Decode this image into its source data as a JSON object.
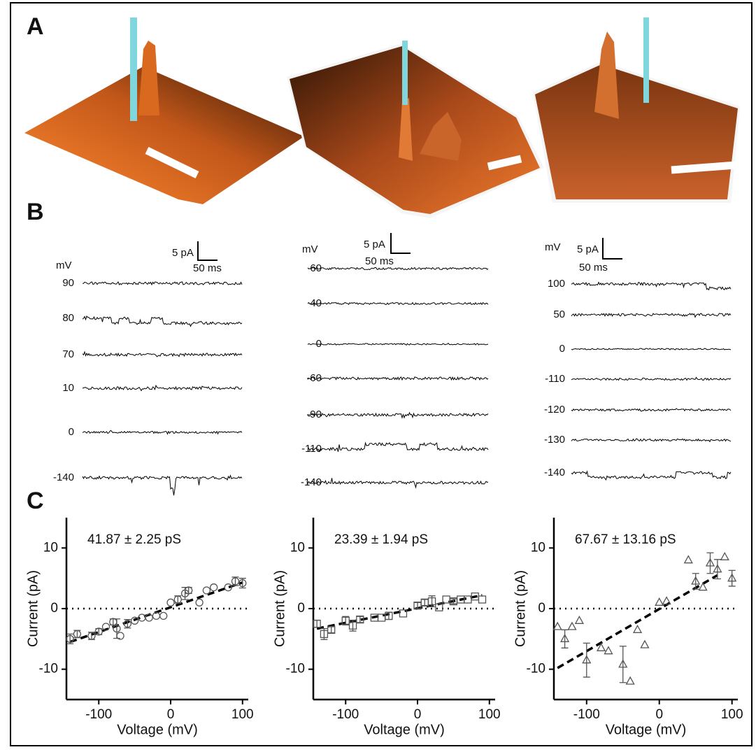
{
  "panel_labels": [
    "A",
    "B",
    "C"
  ],
  "traces": [
    {
      "unit": "mV",
      "current_scale": "5 pA",
      "time_scale": "50 ms",
      "voltages": [
        "90",
        "80",
        "70",
        "10",
        "0",
        "-140"
      ]
    },
    {
      "unit": "mV",
      "current_scale": "5 pA",
      "time_scale": "50 ms",
      "voltages": [
        "60",
        "40",
        "0",
        "-60",
        "-90",
        "-110",
        "-140"
      ]
    },
    {
      "unit": "mV",
      "current_scale": "5 pA",
      "time_scale": "50 ms",
      "voltages": [
        "100",
        "50",
        "0",
        "-110",
        "-120",
        "-130",
        "-140"
      ]
    }
  ],
  "chart_data": [
    {
      "type": "scatter",
      "marker": "circle",
      "color": "#555555",
      "annotation": "41.87 ± 2.25 pS",
      "xlabel": "Voltage (mV)",
      "ylabel": "Current (pA)",
      "x": [
        -140,
        -130,
        -110,
        -100,
        -90,
        -80,
        -75,
        -70,
        -60,
        -50,
        -40,
        -30,
        -20,
        -10,
        0,
        10,
        20,
        25,
        40,
        50,
        60,
        80,
        90,
        100
      ],
      "values": [
        -5,
        -4.2,
        -4.5,
        -3.8,
        -3,
        -2.2,
        -3.3,
        -4.5,
        -2.5,
        -2,
        -1.5,
        -1.5,
        -1.2,
        -1.2,
        1,
        1.5,
        2.5,
        3,
        1,
        3,
        3.5,
        3.5,
        4.5,
        4.2
      ],
      "errors": [
        0.8,
        0.6,
        0.6,
        0.5,
        null,
        0.5,
        1.6,
        null,
        0.7,
        null,
        null,
        null,
        null,
        null,
        null,
        0.6,
        1,
        0.5,
        null,
        null,
        null,
        null,
        0.7,
        0.8
      ],
      "fit": {
        "x": [
          -140,
          100
        ],
        "values": [
          -5.5,
          4.3
        ]
      },
      "xlim": [
        -145,
        108
      ],
      "ylim": [
        -15,
        15
      ],
      "xticks": [
        -100,
        0,
        100
      ],
      "yticks": [
        -10,
        0,
        10
      ]
    },
    {
      "type": "scatter",
      "marker": "square",
      "color": "#555555",
      "annotation": "23.39 ± 1.94 pS",
      "xlabel": "Voltage (mV)",
      "ylabel": "Current (pA)",
      "x": [
        -140,
        -130,
        -120,
        -100,
        -90,
        -80,
        -60,
        -50,
        -40,
        -20,
        0,
        10,
        20,
        30,
        40,
        50,
        60,
        70,
        80,
        90
      ],
      "values": [
        -2.5,
        -4.2,
        -3.5,
        -2,
        -2.8,
        -1.8,
        -1.5,
        -1.5,
        -1.2,
        -0.8,
        0.5,
        1,
        1.2,
        0.2,
        1.5,
        1.2,
        1.5,
        1.5,
        2,
        1.5
      ],
      "errors": [
        0.6,
        0.9,
        0.5,
        0.7,
        0.9,
        0.5,
        null,
        null,
        0.6,
        null,
        0.5,
        0.5,
        0.9,
        null,
        null,
        0.4,
        null,
        null,
        null,
        null
      ],
      "fit": {
        "x": [
          -140,
          90
        ],
        "values": [
          -3.3,
          2.2
        ]
      },
      "xlim": [
        -145,
        108
      ],
      "ylim": [
        -15,
        15
      ],
      "xticks": [
        -100,
        0,
        100
      ],
      "yticks": [
        -10,
        0,
        10
      ]
    },
    {
      "type": "scatter",
      "marker": "triangle",
      "color": "#555555",
      "annotation": "67.67 ± 13.16 pS",
      "xlabel": "Voltage (mV)",
      "ylabel": "Current (pA)",
      "x": [
        -140,
        -130,
        -120,
        -110,
        -100,
        -80,
        -70,
        -50,
        -40,
        -30,
        -20,
        0,
        10,
        40,
        50,
        60,
        70,
        80,
        90,
        100
      ],
      "values": [
        -3,
        -5,
        -3,
        -2,
        -8.5,
        -6.5,
        -7,
        -9.2,
        -12,
        -3.5,
        -6,
        1,
        1.2,
        8,
        4.5,
        3.5,
        7.5,
        6.5,
        8.5,
        5
      ],
      "errors": [
        null,
        1.5,
        null,
        null,
        2.8,
        null,
        null,
        3,
        null,
        null,
        null,
        null,
        null,
        null,
        1.3,
        null,
        1.7,
        1.6,
        null,
        1.3
      ],
      "fit": {
        "x": [
          -140,
          80
        ],
        "values": [
          -9.8,
          5.5
        ]
      },
      "xlim": [
        -145,
        108
      ],
      "ylim": [
        -15,
        15
      ],
      "xticks": [
        -100,
        0,
        100
      ],
      "yticks": [
        -10,
        0,
        10
      ]
    }
  ]
}
